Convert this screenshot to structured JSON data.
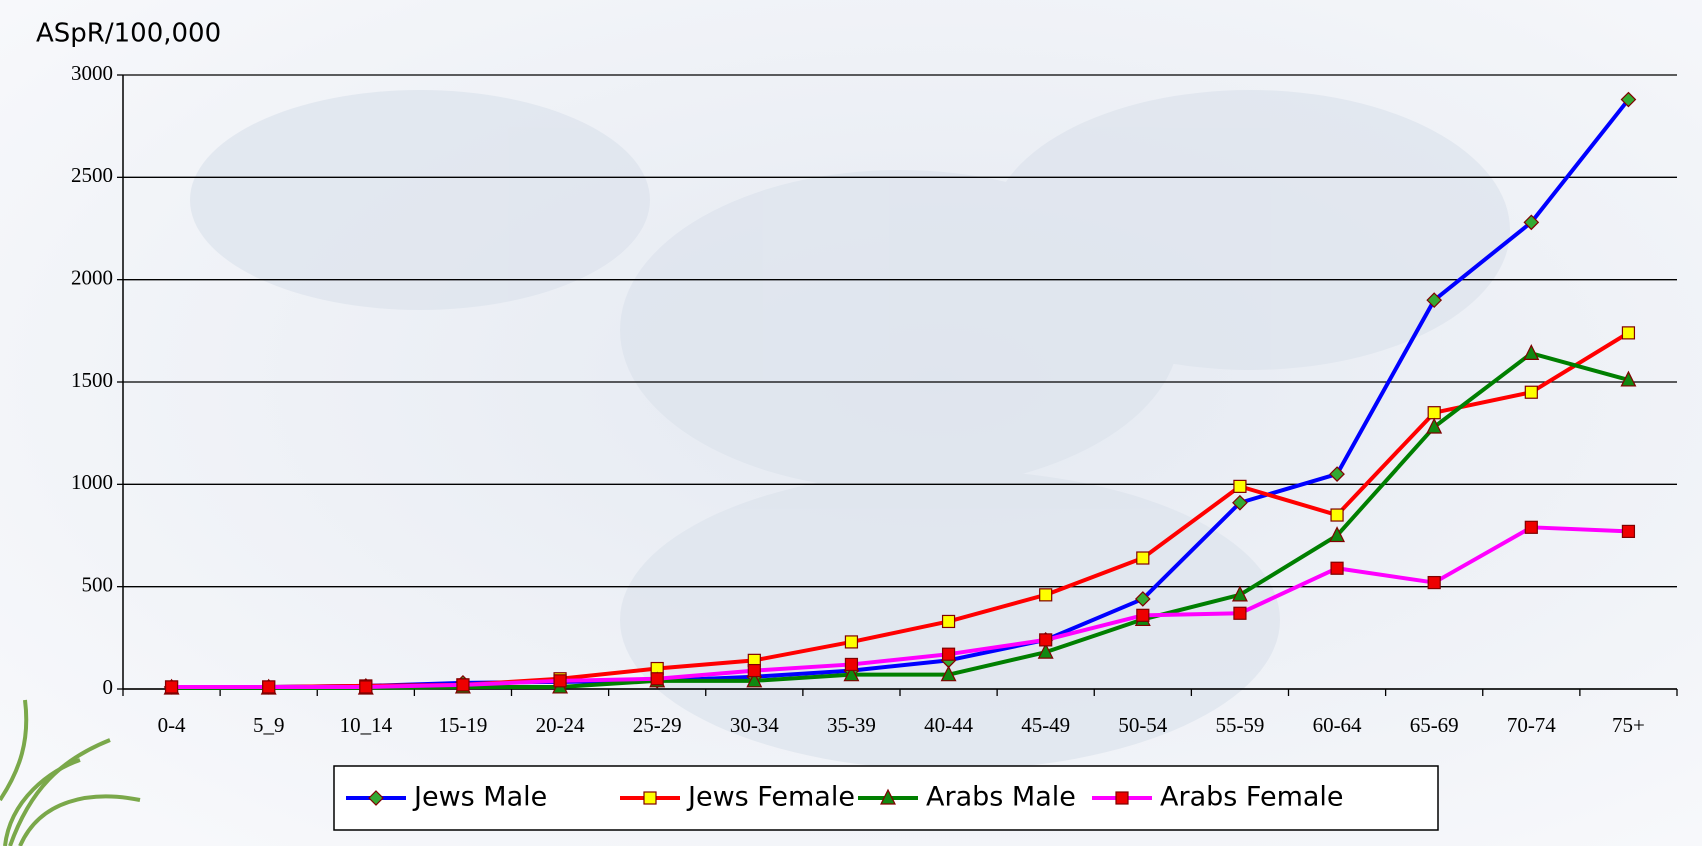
{
  "chart_data": {
    "type": "line",
    "y_label": "ASpR/100,000",
    "categories": [
      "0-4",
      "5_9",
      "10_14",
      "15-19",
      "20-24",
      "25-29",
      "30-34",
      "35-39",
      "40-44",
      "45-49",
      "50-54",
      "55-59",
      "60-64",
      "65-69",
      "70-74",
      "75+"
    ],
    "series": [
      {
        "name": "Jews Male",
        "color": "#0000ff",
        "marker": "diamond",
        "marker_color": "#33aa33",
        "values": [
          10,
          10,
          15,
          30,
          35,
          40,
          60,
          90,
          140,
          240,
          440,
          910,
          1050,
          1900,
          2280,
          2880
        ]
      },
      {
        "name": "Jews Female",
        "color": "#ff0000",
        "marker": "square",
        "marker_color": "#ffff00",
        "values": [
          10,
          10,
          15,
          20,
          50,
          100,
          140,
          230,
          330,
          460,
          640,
          990,
          850,
          1350,
          1450,
          1740
        ]
      },
      {
        "name": "Arabs Male",
        "color": "#007f00",
        "marker": "triangle",
        "marker_color": "#118811",
        "values": [
          5,
          5,
          5,
          10,
          10,
          40,
          40,
          70,
          70,
          180,
          340,
          460,
          750,
          1280,
          1640,
          1510
        ]
      },
      {
        "name": "Arabs Female",
        "color": "#ff00ff",
        "marker": "square",
        "marker_color": "#ee0000",
        "values": [
          10,
          10,
          10,
          20,
          40,
          50,
          90,
          120,
          170,
          240,
          360,
          370,
          590,
          520,
          790,
          770
        ]
      }
    ],
    "ylim": [
      0,
      3000
    ],
    "yticks": [
      0,
      500,
      1000,
      1500,
      2000,
      2500,
      3000
    ],
    "grid": true
  }
}
